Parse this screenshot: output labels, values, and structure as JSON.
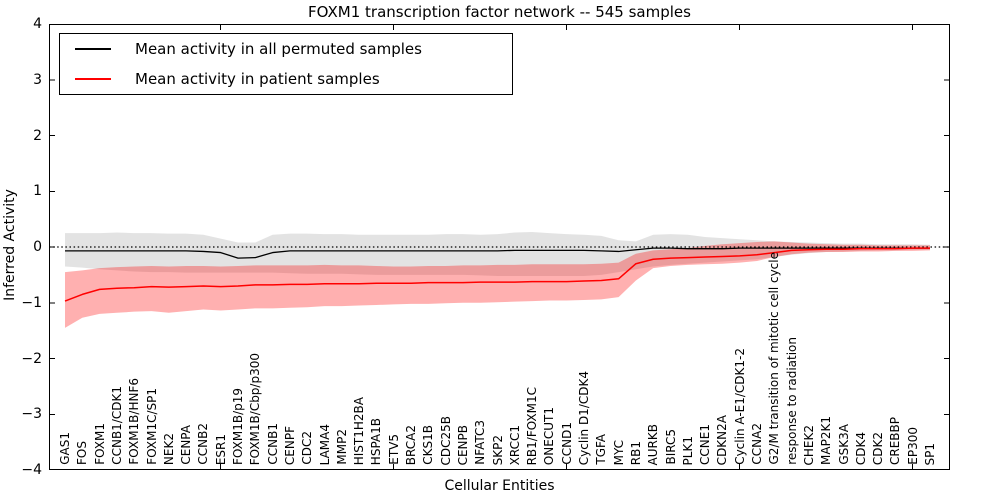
{
  "chart_data": {
    "type": "line",
    "title": "FOXM1 transcription factor network -- 545 samples",
    "xlabel": "Cellular Entities",
    "ylabel": "Inferred Activity",
    "ylim": [
      -4,
      4
    ],
    "grid": false,
    "zero_line_style": "dotted",
    "legend_position": "upper-left",
    "ytick_values": [
      4,
      3,
      2,
      1,
      0,
      -1,
      -2,
      -3,
      -4
    ],
    "ytick_labels": [
      "4",
      "3",
      "2",
      "1",
      "0",
      "−1",
      "−2",
      "−3",
      "−4"
    ],
    "xtick_major_indices": [
      9,
      19,
      29,
      39,
      49
    ],
    "categories": [
      "GAS1",
      "FOS",
      "FOXM1",
      "CCNB1/CDK1",
      "FOXM1B/HNF6",
      "FOXM1C/SP1",
      "NEK2",
      "CENPA",
      "CCNB2",
      "ESR1",
      "FOXM1B/p19",
      "FOXM1B/Cbp/p300",
      "CCNB1",
      "CENPF",
      "CDC2",
      "LAMA4",
      "MMP2",
      "HIST1H2BA",
      "HSPA1B",
      "ETV5",
      "BRCA2",
      "CKS1B",
      "CDC25B",
      "CENPB",
      "NFATC3",
      "SKP2",
      "XRCC1",
      "RB1/FOXM1C",
      "ONECUT1",
      "CCND1",
      "Cyclin D1/CDK4",
      "TGFA",
      "MYC",
      "RB1",
      "AURKB",
      "BIRC5",
      "PLK1",
      "CCNE1",
      "CDKN2A",
      "Cyclin A-E1/CDK1-2",
      "CCNA2",
      "G2/M transition of mitotic cell cycle",
      "response to radiation",
      "CHEK2",
      "MAP2K1",
      "GSK3A",
      "CDK4",
      "CDK2",
      "CREBBP",
      "EP300",
      "SP1"
    ],
    "series": [
      {
        "name": "Mean activity in all permuted samples",
        "color": "#000000",
        "line_width": 1.3,
        "values": [
          -0.07,
          -0.07,
          -0.07,
          -0.07,
          -0.07,
          -0.07,
          -0.07,
          -0.07,
          -0.08,
          -0.1,
          -0.2,
          -0.19,
          -0.1,
          -0.07,
          -0.07,
          -0.07,
          -0.07,
          -0.07,
          -0.07,
          -0.07,
          -0.07,
          -0.07,
          -0.07,
          -0.07,
          -0.07,
          -0.07,
          -0.06,
          -0.06,
          -0.06,
          -0.06,
          -0.06,
          -0.07,
          -0.08,
          -0.05,
          -0.02,
          -0.02,
          -0.03,
          -0.03,
          -0.03,
          -0.02,
          -0.02,
          -0.02,
          -0.02,
          -0.02,
          -0.02,
          -0.02,
          -0.02,
          -0.02,
          -0.02,
          -0.02,
          -0.02
        ],
        "band": {
          "fill": "rgba(0,0,0,0.11)",
          "top": [
            0.25,
            0.25,
            0.25,
            0.26,
            0.25,
            0.25,
            0.24,
            0.24,
            0.22,
            0.15,
            0.08,
            0.08,
            0.22,
            0.24,
            0.24,
            0.23,
            0.23,
            0.22,
            0.22,
            0.22,
            0.22,
            0.22,
            0.23,
            0.23,
            0.22,
            0.23,
            0.26,
            0.27,
            0.25,
            0.23,
            0.22,
            0.2,
            0.12,
            0.1,
            0.22,
            0.23,
            0.22,
            0.18,
            0.16,
            0.14,
            0.12,
            0.1,
            0.09,
            0.08,
            0.07,
            0.06,
            0.06,
            0.05,
            0.05,
            0.05,
            0.04
          ],
          "bottom": [
            -0.35,
            -0.37,
            -0.4,
            -0.42,
            -0.44,
            -0.45,
            -0.45,
            -0.46,
            -0.46,
            -0.46,
            -0.46,
            -0.46,
            -0.46,
            -0.47,
            -0.48,
            -0.48,
            -0.48,
            -0.49,
            -0.5,
            -0.5,
            -0.5,
            -0.5,
            -0.5,
            -0.5,
            -0.51,
            -0.52,
            -0.52,
            -0.52,
            -0.52,
            -0.52,
            -0.52,
            -0.5,
            -0.45,
            -0.4,
            -0.35,
            -0.32,
            -0.3,
            -0.28,
            -0.26,
            -0.24,
            -0.22,
            -0.18,
            -0.14,
            -0.11,
            -0.09,
            -0.08,
            -0.07,
            -0.06,
            -0.06,
            -0.05,
            -0.05
          ]
        }
      },
      {
        "name": "Mean activity in patient samples",
        "color": "#ff0000",
        "line_width": 1.5,
        "values": [
          -0.97,
          -0.85,
          -0.76,
          -0.74,
          -0.73,
          -0.71,
          -0.72,
          -0.71,
          -0.7,
          -0.71,
          -0.7,
          -0.68,
          -0.68,
          -0.67,
          -0.67,
          -0.66,
          -0.66,
          -0.66,
          -0.65,
          -0.65,
          -0.65,
          -0.64,
          -0.64,
          -0.64,
          -0.63,
          -0.63,
          -0.63,
          -0.62,
          -0.62,
          -0.62,
          -0.61,
          -0.6,
          -0.57,
          -0.3,
          -0.22,
          -0.2,
          -0.19,
          -0.18,
          -0.17,
          -0.16,
          -0.14,
          -0.1,
          -0.06,
          -0.05,
          -0.04,
          -0.04,
          -0.03,
          -0.03,
          -0.03,
          -0.02,
          -0.02
        ],
        "band": {
          "fill": "rgba(255,0,0,0.31)",
          "top": [
            -0.45,
            -0.42,
            -0.38,
            -0.36,
            -0.35,
            -0.34,
            -0.35,
            -0.34,
            -0.34,
            -0.35,
            -0.34,
            -0.33,
            -0.33,
            -0.33,
            -0.33,
            -0.32,
            -0.33,
            -0.33,
            -0.34,
            -0.35,
            -0.35,
            -0.34,
            -0.34,
            -0.33,
            -0.33,
            -0.32,
            -0.32,
            -0.31,
            -0.31,
            -0.31,
            -0.31,
            -0.3,
            -0.28,
            -0.12,
            -0.06,
            -0.04,
            -0.02,
            0.02,
            0.05,
            0.07,
            0.09,
            0.1,
            0.08,
            0.06,
            0.05,
            0.04,
            0.04,
            0.03,
            0.03,
            0.03,
            0.03
          ],
          "bottom": [
            -1.45,
            -1.27,
            -1.2,
            -1.18,
            -1.16,
            -1.15,
            -1.18,
            -1.15,
            -1.12,
            -1.14,
            -1.12,
            -1.1,
            -1.1,
            -1.09,
            -1.08,
            -1.06,
            -1.06,
            -1.05,
            -1.04,
            -1.03,
            -1.02,
            -1.02,
            -1.01,
            -1.0,
            -1.0,
            -0.99,
            -0.98,
            -0.97,
            -0.96,
            -0.96,
            -0.95,
            -0.94,
            -0.9,
            -0.6,
            -0.38,
            -0.34,
            -0.32,
            -0.31,
            -0.3,
            -0.28,
            -0.25,
            -0.18,
            -0.13,
            -0.1,
            -0.09,
            -0.09,
            -0.08,
            -0.08,
            -0.07,
            -0.07,
            -0.06
          ]
        }
      }
    ]
  }
}
